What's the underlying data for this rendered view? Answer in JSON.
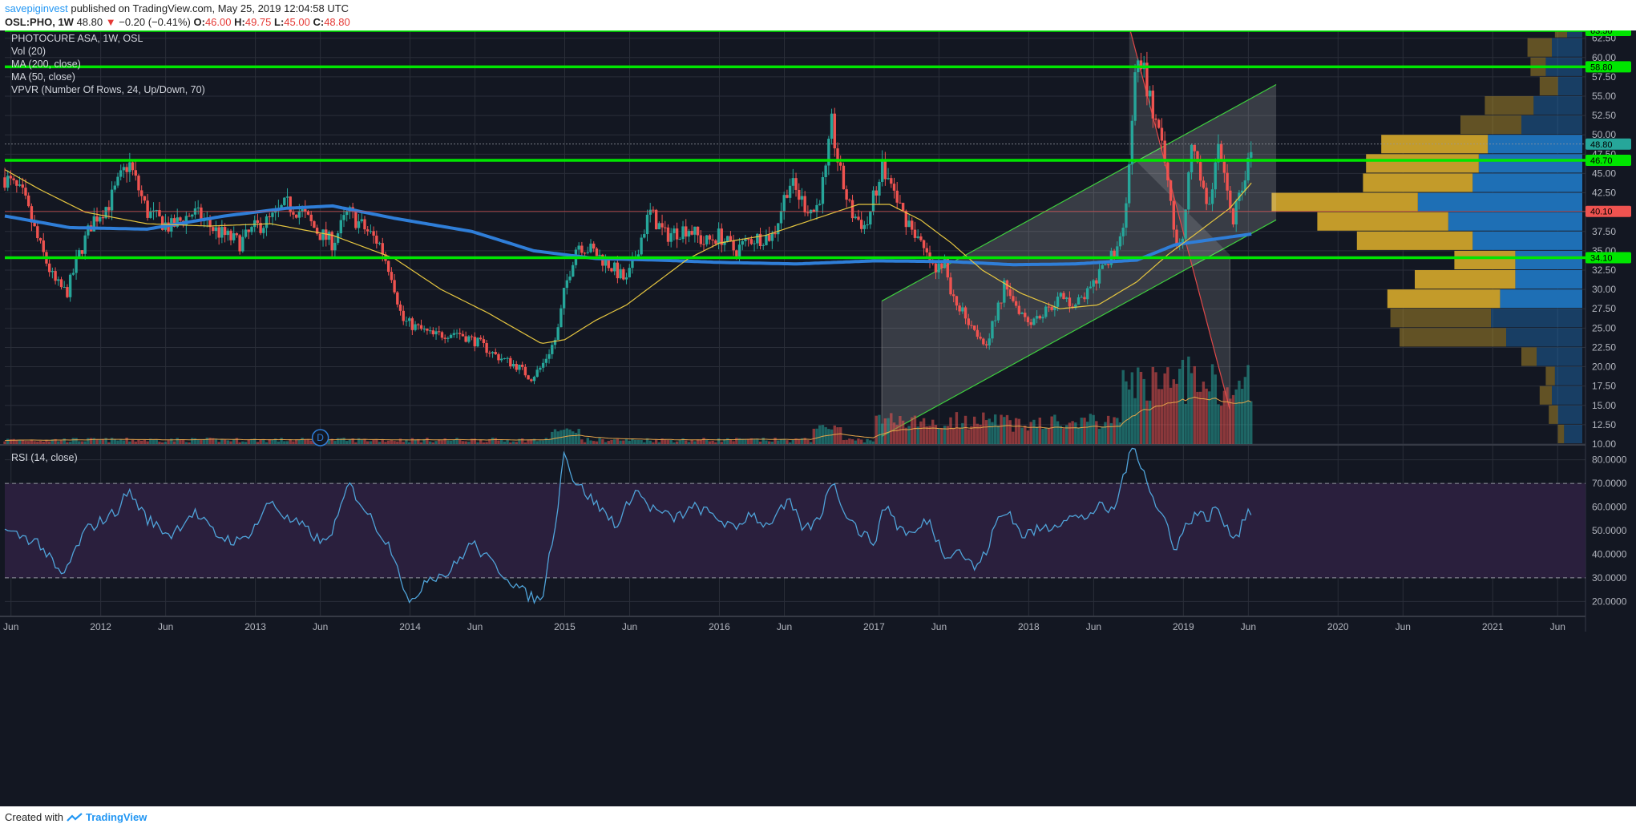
{
  "header": {
    "username": "savepiginvest",
    "published": "published on TradingView.com, May 25, 2019 12:04:58 UTC",
    "symbol": "OSL:PHO, 1W",
    "last": "48.80",
    "arrow": "▼",
    "change": "−0.20 (−0.41%)",
    "o_label": "O:",
    "o": "46.00",
    "h_label": "H:",
    "h": "49.75",
    "l_label": "L:",
    "l": "45.00",
    "c_label": "C:",
    "c": "48.80"
  },
  "legend": {
    "title": "PHOTOCURE ASA, 1W, OSL",
    "vol": "Vol (20)",
    "ma200": "MA (200, close)",
    "ma50": "MA (50, close)",
    "vpvr": "VPVR (Number Of Rows, 24, Up/Down, 70)",
    "rsi": "RSI (14, close)"
  },
  "footer": {
    "created": "Created with",
    "brand": "TradingView"
  },
  "colors": {
    "background": "#131722",
    "grid": "#2a2e39",
    "candle_up": "#26a69a",
    "candle_down": "#ef5350",
    "ma200": "#2f7ed8",
    "ma50": "#e6c640",
    "hline": "#00e600",
    "rsi_line": "#4fa3d9",
    "rsi_band": "#2a1f3d",
    "vp_up": "#1e6fb5",
    "vp_down": "#c39b2a"
  },
  "chart_data": {
    "type": "candlestick",
    "symbol": "OSL:PHO",
    "interval": "1W",
    "price_axis": {
      "ticks": [
        "10.00",
        "12.50",
        "15.00",
        "17.50",
        "20.00",
        "22.50",
        "25.00",
        "27.50",
        "30.00",
        "32.50",
        "35.00",
        "37.50",
        "40.00",
        "42.50",
        "45.00",
        "47.50",
        "50.00",
        "52.50",
        "55.00",
        "57.50",
        "60.00",
        "62.50"
      ],
      "range": [
        10,
        63.5
      ]
    },
    "rsi_axis": {
      "ticks": [
        "20.0000",
        "30.0000",
        "40.0000",
        "50.0000",
        "60.0000",
        "70.0000",
        "80.0000"
      ],
      "range": [
        14,
        86
      ]
    },
    "x_axis_labels": [
      {
        "label": "Jun",
        "t": 2011.42
      },
      {
        "label": "2012",
        "t": 2012.0
      },
      {
        "label": "Jun",
        "t": 2012.42
      },
      {
        "label": "2013",
        "t": 2013.0
      },
      {
        "label": "Jun",
        "t": 2013.42
      },
      {
        "label": "2014",
        "t": 2014.0
      },
      {
        "label": "Jun",
        "t": 2014.42
      },
      {
        "label": "2015",
        "t": 2015.0
      },
      {
        "label": "Jun",
        "t": 2015.42
      },
      {
        "label": "2016",
        "t": 2016.0
      },
      {
        "label": "Jun",
        "t": 2016.42
      },
      {
        "label": "2017",
        "t": 2017.0
      },
      {
        "label": "Jun",
        "t": 2017.42
      },
      {
        "label": "2018",
        "t": 2018.0
      },
      {
        "label": "Jun",
        "t": 2018.42
      },
      {
        "label": "2019",
        "t": 2019.0
      },
      {
        "label": "Jun",
        "t": 2019.42
      },
      {
        "label": "2020",
        "t": 2020.0
      },
      {
        "label": "Jun",
        "t": 2020.42
      },
      {
        "label": "2021",
        "t": 2021.0
      },
      {
        "label": "Jun",
        "t": 2021.42
      }
    ],
    "price_path": [
      [
        2011.38,
        44.5
      ],
      [
        2011.5,
        42
      ],
      [
        2011.6,
        36
      ],
      [
        2011.7,
        31
      ],
      [
        2011.78,
        29.5
      ],
      [
        2011.85,
        34
      ],
      [
        2011.95,
        39
      ],
      [
        2012.05,
        41
      ],
      [
        2012.18,
        46.5
      ],
      [
        2012.3,
        40
      ],
      [
        2012.45,
        38
      ],
      [
        2012.6,
        40
      ],
      [
        2012.75,
        37.5
      ],
      [
        2012.9,
        36
      ],
      [
        2013.0,
        38
      ],
      [
        2013.1,
        39
      ],
      [
        2013.2,
        41
      ],
      [
        2013.3,
        40
      ],
      [
        2013.4,
        37.5
      ],
      [
        2013.5,
        36
      ],
      [
        2013.55,
        38
      ],
      [
        2013.6,
        40
      ],
      [
        2013.7,
        38
      ],
      [
        2013.8,
        36
      ],
      [
        2013.88,
        32
      ],
      [
        2013.95,
        26
      ],
      [
        2014.05,
        25
      ],
      [
        2014.15,
        24
      ],
      [
        2014.3,
        24.5
      ],
      [
        2014.45,
        23
      ],
      [
        2014.55,
        21.5
      ],
      [
        2014.7,
        20
      ],
      [
        2014.78,
        18.5
      ],
      [
        2014.85,
        20
      ],
      [
        2014.95,
        24
      ],
      [
        2015.0,
        30
      ],
      [
        2015.08,
        36
      ],
      [
        2015.18,
        35
      ],
      [
        2015.3,
        33
      ],
      [
        2015.4,
        31
      ],
      [
        2015.55,
        40
      ],
      [
        2015.65,
        37
      ],
      [
        2015.8,
        38
      ],
      [
        2015.9,
        36
      ],
      [
        2016.0,
        37
      ],
      [
        2016.1,
        35
      ],
      [
        2016.2,
        36.5
      ],
      [
        2016.35,
        37
      ],
      [
        2016.45,
        44
      ],
      [
        2016.55,
        41
      ],
      [
        2016.62,
        40
      ],
      [
        2016.7,
        46
      ],
      [
        2016.72,
        52
      ],
      [
        2016.78,
        45
      ],
      [
        2016.85,
        40
      ],
      [
        2016.95,
        38
      ],
      [
        2017.05,
        46
      ],
      [
        2017.12,
        43
      ],
      [
        2017.18,
        40
      ],
      [
        2017.25,
        38
      ],
      [
        2017.32,
        35
      ],
      [
        2017.4,
        32
      ],
      [
        2017.45,
        34
      ],
      [
        2017.5,
        29
      ],
      [
        2017.58,
        27
      ],
      [
        2017.65,
        25
      ],
      [
        2017.72,
        23
      ],
      [
        2017.78,
        26
      ],
      [
        2017.85,
        31
      ],
      [
        2017.92,
        28
      ],
      [
        2018.0,
        26
      ],
      [
        2018.1,
        27
      ],
      [
        2018.2,
        29
      ],
      [
        2018.3,
        28
      ],
      [
        2018.4,
        30
      ],
      [
        2018.5,
        33
      ],
      [
        2018.6,
        37
      ],
      [
        2018.65,
        45
      ],
      [
        2018.68,
        57
      ],
      [
        2018.72,
        60
      ],
      [
        2018.78,
        55
      ],
      [
        2018.85,
        49
      ],
      [
        2018.9,
        44
      ],
      [
        2018.95,
        37
      ],
      [
        2019.0,
        36
      ],
      [
        2019.05,
        48
      ],
      [
        2019.12,
        44
      ],
      [
        2019.18,
        40
      ],
      [
        2019.22,
        50
      ],
      [
        2019.28,
        43
      ],
      [
        2019.32,
        39
      ],
      [
        2019.38,
        44
      ],
      [
        2019.42,
        46
      ],
      [
        2019.45,
        48.8
      ]
    ],
    "ma200_path": [
      [
        2011.38,
        39.5
      ],
      [
        2011.8,
        38
      ],
      [
        2012.3,
        37.8
      ],
      [
        2012.8,
        39.5
      ],
      [
        2013.2,
        40.5
      ],
      [
        2013.5,
        40.8
      ],
      [
        2013.9,
        39.2
      ],
      [
        2014.4,
        37.5
      ],
      [
        2014.8,
        35
      ],
      [
        2015.2,
        34
      ],
      [
        2015.6,
        33.8
      ],
      [
        2016.0,
        33.5
      ],
      [
        2016.5,
        33.3
      ],
      [
        2017.0,
        33.7
      ],
      [
        2017.5,
        33.6
      ],
      [
        2017.9,
        33.2
      ],
      [
        2018.3,
        33.3
      ],
      [
        2018.7,
        33.8
      ],
      [
        2018.95,
        35.8
      ],
      [
        2019.2,
        36.5
      ],
      [
        2019.45,
        37.2
      ]
    ],
    "ma50_path": [
      [
        2011.38,
        45.5
      ],
      [
        2011.6,
        43
      ],
      [
        2011.9,
        40
      ],
      [
        2012.3,
        38.5
      ],
      [
        2012.7,
        38.2
      ],
      [
        2013.1,
        38.5
      ],
      [
        2013.5,
        37
      ],
      [
        2013.9,
        34
      ],
      [
        2014.2,
        30
      ],
      [
        2014.5,
        27
      ],
      [
        2014.85,
        23
      ],
      [
        2015.0,
        23.5
      ],
      [
        2015.2,
        26
      ],
      [
        2015.4,
        28
      ],
      [
        2015.6,
        31
      ],
      [
        2015.8,
        34
      ],
      [
        2016.0,
        36
      ],
      [
        2016.3,
        37
      ],
      [
        2016.6,
        39
      ],
      [
        2016.9,
        41
      ],
      [
        2017.1,
        41
      ],
      [
        2017.3,
        39
      ],
      [
        2017.5,
        36
      ],
      [
        2017.7,
        32.5
      ],
      [
        2017.95,
        29.5
      ],
      [
        2018.2,
        27.5
      ],
      [
        2018.45,
        28
      ],
      [
        2018.7,
        31
      ],
      [
        2018.9,
        34.5
      ],
      [
        2019.1,
        37.5
      ],
      [
        2019.3,
        40.5
      ],
      [
        2019.45,
        44
      ]
    ],
    "rsi_path": [
      [
        2011.38,
        50
      ],
      [
        2011.6,
        45
      ],
      [
        2011.75,
        30
      ],
      [
        2011.9,
        50
      ],
      [
        2012.1,
        58
      ],
      [
        2012.18,
        67
      ],
      [
        2012.3,
        55
      ],
      [
        2012.45,
        48
      ],
      [
        2012.6,
        58
      ],
      [
        2012.75,
        48
      ],
      [
        2012.9,
        45
      ],
      [
        2013.0,
        52
      ],
      [
        2013.1,
        63
      ],
      [
        2013.2,
        55
      ],
      [
        2013.3,
        52
      ],
      [
        2013.45,
        44
      ],
      [
        2013.55,
        58
      ],
      [
        2013.6,
        70
      ],
      [
        2013.7,
        60
      ],
      [
        2013.8,
        50
      ],
      [
        2013.9,
        40
      ],
      [
        2014.0,
        17
      ],
      [
        2014.1,
        30
      ],
      [
        2014.25,
        32
      ],
      [
        2014.4,
        45
      ],
      [
        2014.5,
        38
      ],
      [
        2014.6,
        32
      ],
      [
        2014.75,
        23
      ],
      [
        2014.85,
        20
      ],
      [
        2014.95,
        58
      ],
      [
        2015.0,
        86
      ],
      [
        2015.05,
        72
      ],
      [
        2015.15,
        65
      ],
      [
        2015.25,
        58
      ],
      [
        2015.35,
        52
      ],
      [
        2015.45,
        68
      ],
      [
        2015.55,
        60
      ],
      [
        2015.7,
        55
      ],
      [
        2015.85,
        60
      ],
      [
        2016.0,
        55
      ],
      [
        2016.1,
        50
      ],
      [
        2016.2,
        58
      ],
      [
        2016.3,
        52
      ],
      [
        2016.45,
        62
      ],
      [
        2016.55,
        50
      ],
      [
        2016.65,
        55
      ],
      [
        2016.72,
        72
      ],
      [
        2016.8,
        60
      ],
      [
        2016.9,
        50
      ],
      [
        2017.0,
        45
      ],
      [
        2017.08,
        62
      ],
      [
        2017.15,
        52
      ],
      [
        2017.25,
        48
      ],
      [
        2017.35,
        55
      ],
      [
        2017.45,
        40
      ],
      [
        2017.55,
        42
      ],
      [
        2017.65,
        34
      ],
      [
        2017.72,
        40
      ],
      [
        2017.8,
        55
      ],
      [
        2017.88,
        58
      ],
      [
        2017.95,
        48
      ],
      [
        2018.05,
        50
      ],
      [
        2018.15,
        52
      ],
      [
        2018.25,
        56
      ],
      [
        2018.35,
        55
      ],
      [
        2018.45,
        60
      ],
      [
        2018.55,
        58
      ],
      [
        2018.62,
        75
      ],
      [
        2018.68,
        86
      ],
      [
        2018.75,
        75
      ],
      [
        2018.82,
        60
      ],
      [
        2018.88,
        55
      ],
      [
        2018.95,
        42
      ],
      [
        2019.0,
        50
      ],
      [
        2019.08,
        58
      ],
      [
        2019.15,
        55
      ],
      [
        2019.22,
        60
      ],
      [
        2019.28,
        50
      ],
      [
        2019.35,
        48
      ],
      [
        2019.42,
        60
      ],
      [
        2019.45,
        56
      ]
    ],
    "horizontal_lines": [
      {
        "price": 63.5,
        "label": "63.50",
        "color": "#00e600"
      },
      {
        "price": 58.8,
        "label": "58.80",
        "color": "#00e600"
      },
      {
        "price": 46.7,
        "label": "46.70",
        "color": "#00e600"
      },
      {
        "price": 34.1,
        "label": "34.10",
        "color": "#00e600"
      }
    ],
    "price_tags": [
      {
        "price": 48.8,
        "label": "48.80",
        "color": "#26a69a"
      },
      {
        "price": 40.1,
        "label": "40.10",
        "color": "#ef5350"
      }
    ],
    "volume_profile": [
      {
        "price_low": 10,
        "price_high": 12.5,
        "up": 0.06,
        "down": 0.02
      },
      {
        "price_low": 12.5,
        "price_high": 15,
        "up": 0.08,
        "down": 0.03
      },
      {
        "price_low": 15,
        "price_high": 17.5,
        "up": 0.1,
        "down": 0.04
      },
      {
        "price_low": 17.5,
        "price_high": 20,
        "up": 0.09,
        "down": 0.03
      },
      {
        "price_low": 20,
        "price_high": 22.5,
        "up": 0.15,
        "down": 0.05
      },
      {
        "price_low": 22.5,
        "price_high": 25,
        "up": 0.25,
        "down": 0.35
      },
      {
        "price_low": 25,
        "price_high": 27.5,
        "up": 0.3,
        "down": 0.33
      },
      {
        "price_low": 27.5,
        "price_high": 30,
        "up": 0.27,
        "down": 0.37
      },
      {
        "price_low": 30,
        "price_high": 32.5,
        "up": 0.22,
        "down": 0.33
      },
      {
        "price_low": 32.5,
        "price_high": 35,
        "up": 0.22,
        "down": 0.2
      },
      {
        "price_low": 35,
        "price_high": 37.5,
        "up": 0.36,
        "down": 0.38
      },
      {
        "price_low": 37.5,
        "price_high": 40,
        "up": 0.44,
        "down": 0.43
      },
      {
        "price_low": 40,
        "price_high": 42.5,
        "up": 0.54,
        "down": 0.48
      },
      {
        "price_low": 42.5,
        "price_high": 45,
        "up": 0.36,
        "down": 0.36
      },
      {
        "price_low": 45,
        "price_high": 47.5,
        "up": 0.34,
        "down": 0.37
      },
      {
        "price_low": 47.5,
        "price_high": 50,
        "up": 0.31,
        "down": 0.35
      },
      {
        "price_low": 50,
        "price_high": 52.5,
        "up": 0.2,
        "down": 0.2
      },
      {
        "price_low": 52.5,
        "price_high": 55,
        "up": 0.16,
        "down": 0.16
      },
      {
        "price_low": 55,
        "price_high": 57.5,
        "up": 0.08,
        "down": 0.06
      },
      {
        "price_low": 57.5,
        "price_high": 60,
        "up": 0.12,
        "down": 0.05
      },
      {
        "price_low": 60,
        "price_high": 62.5,
        "up": 0.1,
        "down": 0.08
      },
      {
        "price_low": 62.5,
        "price_high": 63.5,
        "up": 0.05,
        "down": 0.04
      },
      {
        "price_low": 63.5,
        "price_high": 65,
        "up": 0.03,
        "down": 0.03
      },
      {
        "price_low": 65,
        "price_high": 67.5,
        "up": 0.02,
        "down": 0.02
      }
    ],
    "event_marker": {
      "label": "D",
      "t": 2013.42
    }
  }
}
